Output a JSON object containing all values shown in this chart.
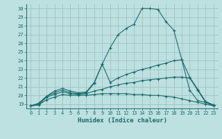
{
  "xlabel": "Humidex (Indice chaleur)",
  "xlim": [
    -0.5,
    23.5
  ],
  "ylim": [
    18.5,
    30.5
  ],
  "yticks": [
    19,
    20,
    21,
    22,
    23,
    24,
    25,
    26,
    27,
    28,
    29,
    30
  ],
  "xticks": [
    0,
    1,
    2,
    3,
    4,
    5,
    6,
    7,
    8,
    9,
    10,
    11,
    12,
    13,
    14,
    15,
    16,
    17,
    18,
    19,
    20,
    21,
    22,
    23
  ],
  "background_color": "#bde0e0",
  "line_color": "#1a6b6b",
  "grid_color": "#9bbcbc",
  "lines": [
    {
      "x": [
        0,
        1,
        2,
        3,
        4,
        5,
        6,
        7,
        8,
        9,
        10,
        11,
        12,
        13,
        14,
        15,
        16,
        17,
        18,
        19,
        20,
        21,
        22,
        23
      ],
      "y": [
        18.8,
        19.1,
        19.9,
        20.5,
        20.8,
        20.5,
        20.3,
        20.4,
        21.5,
        23.6,
        25.5,
        27.0,
        27.7,
        28.2,
        30.0,
        30.0,
        29.9,
        28.5,
        27.5,
        24.1,
        22.1,
        20.7,
        19.3,
        18.9
      ]
    },
    {
      "x": [
        0,
        1,
        2,
        3,
        4,
        5,
        6,
        7,
        8,
        9,
        10,
        11,
        12,
        13,
        14,
        15,
        16,
        17,
        18,
        19,
        20,
        21,
        22,
        23
      ],
      "y": [
        18.8,
        19.0,
        19.9,
        20.3,
        20.6,
        20.3,
        20.2,
        20.3,
        21.4,
        23.6,
        21.5,
        22.0,
        22.4,
        22.7,
        23.0,
        23.2,
        23.5,
        23.7,
        24.0,
        24.1,
        20.6,
        19.4,
        19.2,
        18.9
      ]
    },
    {
      "x": [
        0,
        1,
        2,
        3,
        4,
        5,
        6,
        7,
        8,
        9,
        10,
        11,
        12,
        13,
        14,
        15,
        16,
        17,
        18,
        19,
        20,
        21,
        22,
        23
      ],
      "y": [
        18.8,
        18.9,
        19.8,
        20.1,
        20.4,
        20.2,
        20.1,
        20.2,
        20.5,
        20.7,
        21.0,
        21.2,
        21.4,
        21.5,
        21.7,
        21.8,
        21.9,
        22.0,
        22.1,
        22.1,
        22.0,
        20.6,
        19.2,
        18.8
      ]
    },
    {
      "x": [
        0,
        1,
        2,
        3,
        4,
        5,
        6,
        7,
        8,
        9,
        10,
        11,
        12,
        13,
        14,
        15,
        16,
        17,
        18,
        19,
        20,
        21,
        22,
        23
      ],
      "y": [
        18.8,
        18.9,
        19.5,
        19.8,
        20.1,
        20.0,
        20.0,
        20.0,
        20.1,
        20.2,
        20.2,
        20.2,
        20.2,
        20.1,
        20.1,
        20.0,
        20.0,
        19.9,
        19.8,
        19.6,
        19.4,
        19.2,
        19.0,
        18.8
      ]
    }
  ]
}
